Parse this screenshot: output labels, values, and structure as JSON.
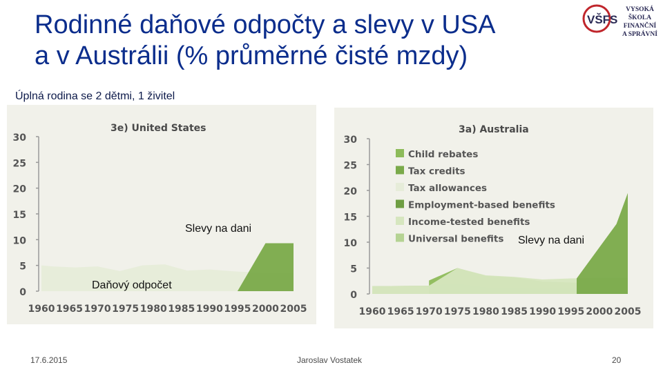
{
  "slide": {
    "title_line1": "Rodinné daňové odpočty a slevy v USA",
    "title_line2": "a v Austrálii (% průměrné čisté mzdy)",
    "subtitle": "Úplná rodina se 2 dětmi, 1 živitel",
    "logo_text_line1": "VYSOKÁ ŠKOLA",
    "logo_text_line2": "FINANČNÍ",
    "logo_text_line3": "A SPRÁVNÍ",
    "logo_mark": "VŠFS",
    "footer_date": "17.6.2015",
    "footer_author": "Jaroslav Vostatek",
    "footer_page": "20",
    "annotation_us_tax_credit": "Slevy na dani",
    "annotation_us_deduction": "Daňový odpočet",
    "annotation_au_tax_credit": "Slevy na dani",
    "colors": {
      "title": "#0b2d8c",
      "panel_bg": "#f1f1ea",
      "child_rebates": "#8dbb5a",
      "tax_credits": "#7aaa4a",
      "tax_allowances": "#e6ecd9",
      "employment_based": "#6f9e43",
      "income_tested": "#d6e6bf",
      "universal": "#b5d393"
    }
  },
  "chart_data": [
    {
      "type": "area",
      "title": "3e) United States",
      "x": [
        1960,
        1965,
        1970,
        1975,
        1980,
        1985,
        1990,
        1995,
        2000,
        2005
      ],
      "ylim": [
        0,
        30
      ],
      "yticks": [
        0,
        5,
        10,
        15,
        20,
        25,
        30
      ],
      "series": [
        {
          "name": "Tax allowances",
          "color": "#e6ecd9",
          "points": [
            [
              1960,
              5
            ],
            [
              1962,
              4.8
            ],
            [
              1966,
              4.6
            ],
            [
              1970,
              4.8
            ],
            [
              1974,
              3.9
            ],
            [
              1978,
              5.0
            ],
            [
              1982,
              5.2
            ],
            [
              1986,
              4.0
            ],
            [
              1990,
              4.2
            ],
            [
              1995,
              3.8
            ],
            [
              2000,
              3.6
            ],
            [
              2005,
              3.5
            ]
          ]
        },
        {
          "name": "Tax credits",
          "color": "#7aaa4a",
          "points": [
            [
              1995,
              0
            ],
            [
              2000,
              9.3
            ],
            [
              2005,
              9.3
            ]
          ]
        }
      ]
    },
    {
      "type": "area",
      "title": "3a) Australia",
      "x": [
        1960,
        1965,
        1970,
        1975,
        1980,
        1985,
        1990,
        1995,
        2000,
        2005
      ],
      "ylim": [
        0,
        30
      ],
      "yticks": [
        0,
        5,
        10,
        15,
        20,
        25,
        30
      ],
      "legend": [
        "Child rebates",
        "Tax credits",
        "Tax allowances",
        "Employment-based benefits",
        "Income-tested benefits",
        "Universal benefits"
      ],
      "legend_colors": [
        "#8dbb5a",
        "#7aaa4a",
        "#e6ecd9",
        "#6f9e43",
        "#d6e6bf",
        "#b5d393"
      ],
      "series": [
        {
          "name": "Universal benefits",
          "color": "#b5d393",
          "points": [
            [
              1960,
              1.5
            ],
            [
              1970,
              1.6
            ],
            [
              1975,
              1.9
            ],
            [
              1980,
              1.2
            ],
            [
              1985,
              1.0
            ],
            [
              1990,
              1.0
            ],
            [
              1995,
              1.0
            ],
            [
              2000,
              1.0
            ],
            [
              2005,
              1.0
            ]
          ]
        },
        {
          "name": "Child rebates",
          "color": "#8dbb5a",
          "points": [
            [
              1970,
              2.6
            ],
            [
              1975,
              5.0
            ],
            [
              1980,
              3.5
            ],
            [
              1985,
              3.2
            ],
            [
              1990,
              2.4
            ],
            [
              1995,
              2.2
            ],
            [
              2000,
              2.2
            ],
            [
              2005,
              1.6
            ]
          ]
        },
        {
          "name": "Income-tested benefits",
          "color": "#d6e6bf",
          "points": [
            [
              1960,
              1.5
            ],
            [
              1970,
              1.6
            ],
            [
              1975,
              5.0
            ],
            [
              1980,
              3.6
            ],
            [
              1985,
              3.3
            ],
            [
              1990,
              2.8
            ],
            [
              1995,
              3.0
            ],
            [
              2000,
              3.1
            ],
            [
              2005,
              3.1
            ]
          ]
        },
        {
          "name": "Tax credits",
          "color": "#7aaa4a",
          "points": [
            [
              1996,
              3.0
            ],
            [
              2000,
              9.0
            ],
            [
              2003,
              13.5
            ],
            [
              2005,
              19.5
            ]
          ]
        }
      ]
    }
  ]
}
